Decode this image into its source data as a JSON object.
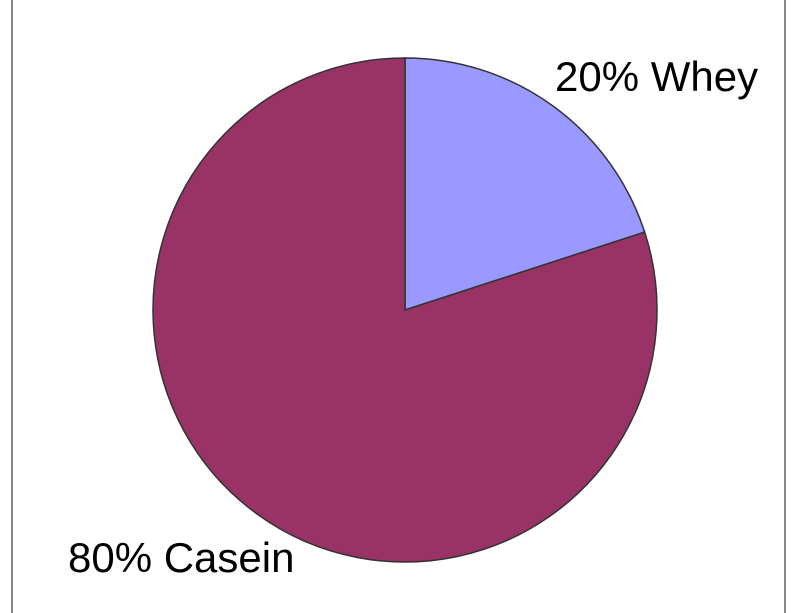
{
  "chart_data": {
    "type": "pie",
    "slices": [
      {
        "label": "20% Whey",
        "value": 20,
        "color": "#9999ff"
      },
      {
        "label": "80% Casein",
        "value": 80,
        "color": "#993366"
      }
    ],
    "start_angle_deg": 0,
    "direction": "clockwise",
    "slice_outline_color": "#333333",
    "frame_border_color": "#888888",
    "legend": "none",
    "grid": false
  }
}
